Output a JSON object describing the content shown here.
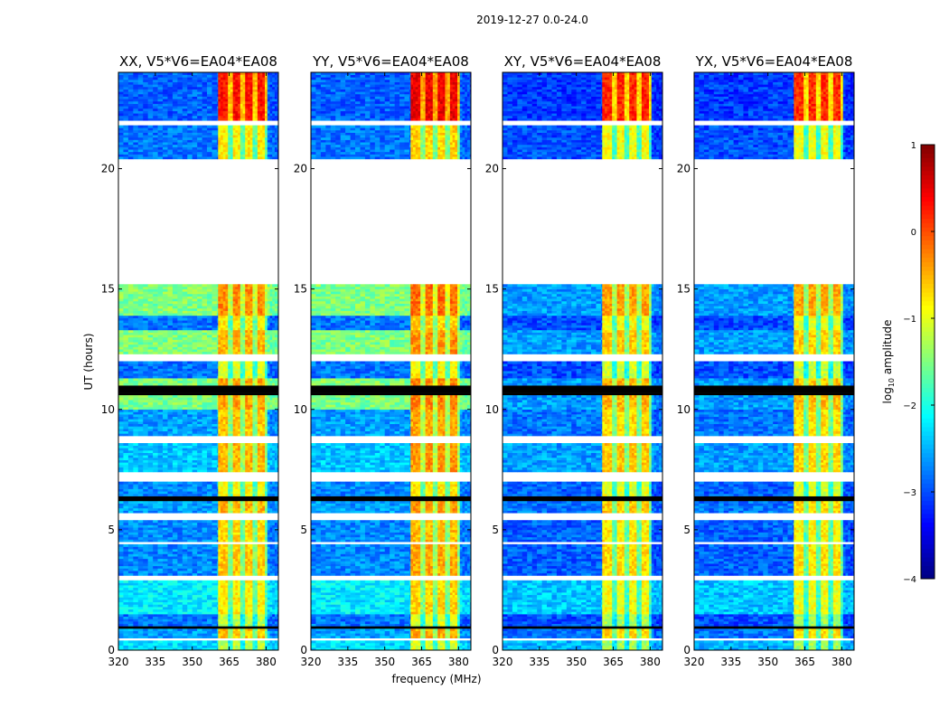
{
  "chart_data": {
    "type": "heatmap",
    "suptitle": "2019-12-27 0.0-24.0",
    "xlabel": "frequency (MHz)",
    "ylabel": "UT (hours)",
    "xlim": [
      320,
      385
    ],
    "ylim": [
      0,
      24
    ],
    "xticks": [
      "320",
      "335",
      "350",
      "365",
      "380"
    ],
    "xtick_values": [
      320,
      335,
      350,
      365,
      380
    ],
    "yticks": [
      "0",
      "5",
      "10",
      "15",
      "20"
    ],
    "ytick_values": [
      0,
      5,
      10,
      15,
      20
    ],
    "colorbar": {
      "label_main": "log",
      "label_sub": "10",
      "label_rest": " amplitude",
      "range": [
        -4,
        1
      ],
      "ticks": [
        "−4",
        "−3",
        "−2",
        "−1",
        "0",
        "1"
      ],
      "tick_values": [
        -4,
        -3,
        -2,
        -1,
        0,
        1
      ],
      "colormap": "jet"
    },
    "rfi_band_mhz": [
      360.5,
      381
    ],
    "rfi_notches_mhz": [
      365.5,
      370.5,
      375.5,
      380.5
    ],
    "panels": [
      {
        "title": "XX, V5*V6=EA04*EA08",
        "bg_offset": 0,
        "rfi_offset": 0,
        "bg_max": 0
      },
      {
        "title": "YY, V5*V6=EA04*EA08",
        "bg_offset": 0,
        "rfi_offset": 0.15,
        "bg_max": 0
      },
      {
        "title": "XY, V5*V6=EA04*EA08",
        "bg_offset": -0.2,
        "rfi_offset": -0.1,
        "bg_max": -2.4
      },
      {
        "title": "YX, V5*V6=EA04*EA08",
        "bg_offset": -0.2,
        "rfi_offset": -0.15,
        "bg_max": -2.4
      }
    ],
    "time_segments": [
      {
        "t": [
          0,
          0.4
        ],
        "bg": -2.3,
        "rfi": -1.2
      },
      {
        "t": [
          0.4,
          0.5
        ],
        "flag": "flagged"
      },
      {
        "t": [
          0.5,
          0.9
        ],
        "bg": -2.6,
        "rfi": -0.6
      },
      {
        "t": [
          0.9,
          1.0
        ],
        "flag": "black"
      },
      {
        "t": [
          1.0,
          1.5
        ],
        "bg": -2.8,
        "rfi": -1.2
      },
      {
        "t": [
          1.5,
          2.9
        ],
        "bg": -2.2,
        "rfi": -0.8
      },
      {
        "t": [
          2.9,
          3.1
        ],
        "flag": "flagged"
      },
      {
        "t": [
          3.1,
          4.4
        ],
        "bg": -2.7,
        "rfi": -0.6
      },
      {
        "t": [
          4.4,
          4.5
        ],
        "flag": "flagged"
      },
      {
        "t": [
          4.5,
          5.4
        ],
        "bg": -2.7,
        "rfi": -0.7
      },
      {
        "t": [
          5.4,
          5.7
        ],
        "flag": "flagged"
      },
      {
        "t": [
          5.7,
          6.2
        ],
        "bg": -2.6,
        "rfi": -0.5
      },
      {
        "t": [
          6.2,
          6.4
        ],
        "flag": "black"
      },
      {
        "t": [
          6.4,
          7.0
        ],
        "bg": -2.7,
        "rfi": -0.9
      },
      {
        "t": [
          7.0,
          7.4
        ],
        "flag": "flagged"
      },
      {
        "t": [
          7.4,
          8.6
        ],
        "bg": -2.4,
        "rfi": -0.5
      },
      {
        "t": [
          8.6,
          8.9
        ],
        "flag": "flagged"
      },
      {
        "t": [
          8.9,
          10.0
        ],
        "bg": -2.6,
        "rfi": -0.6
      },
      {
        "t": [
          10.0,
          10.6
        ],
        "bg": -1.5,
        "rfi": -0.4
      },
      {
        "t": [
          10.6,
          11.0
        ],
        "flag": "black"
      },
      {
        "t": [
          11.0,
          11.3
        ],
        "bg": -1.5,
        "rfi": -0.4
      },
      {
        "t": [
          11.3,
          12.0
        ],
        "bg": -2.8,
        "rfi": -1.0
      },
      {
        "t": [
          12.0,
          12.3
        ],
        "flag": "flagged"
      },
      {
        "t": [
          12.3,
          13.3
        ],
        "bg": -1.5,
        "rfi": -0.5
      },
      {
        "t": [
          13.3,
          13.9
        ],
        "bg": -2.8,
        "rfi": -0.8
      },
      {
        "t": [
          13.9,
          15.2
        ],
        "bg": -1.5,
        "rfi": -0.3
      },
      {
        "t": [
          15.2,
          20.4
        ],
        "flag": "flagged"
      },
      {
        "t": [
          20.4,
          21.8
        ],
        "bg": -2.8,
        "rfi": -0.8
      },
      {
        "t": [
          21.8,
          22.0
        ],
        "flag": "flagged"
      },
      {
        "t": [
          22.0,
          24.0
        ],
        "bg": -2.9,
        "rfi": 0.3
      }
    ]
  }
}
